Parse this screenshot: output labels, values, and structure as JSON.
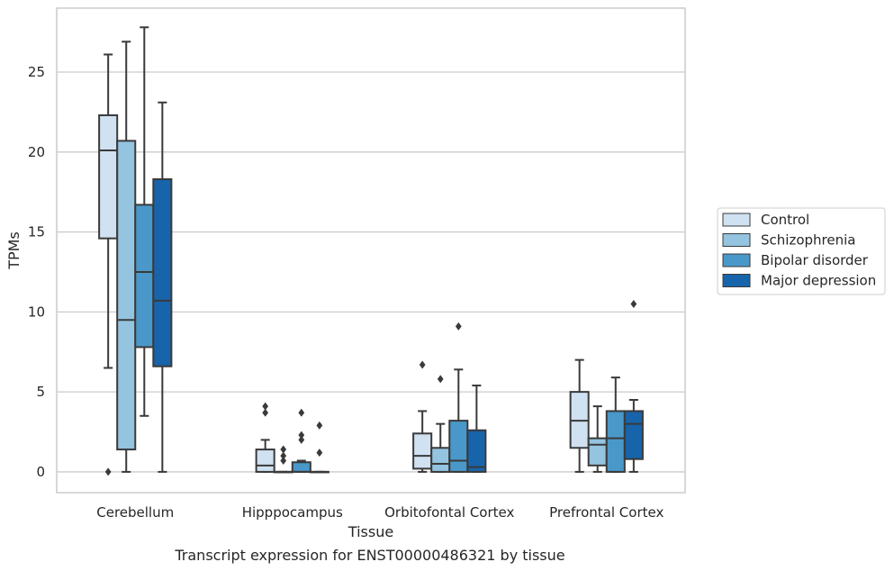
{
  "chart_data": {
    "type": "box",
    "title": "",
    "caption": "Transcript expression for ENST00000486321 by tissue",
    "xlabel": "Tissue",
    "ylabel": "TPMs",
    "ylim": [
      -1.3,
      29
    ],
    "yticks": [
      0,
      5,
      10,
      15,
      20,
      25
    ],
    "grid": "horizontal",
    "legend_position": "right",
    "categories": [
      "Cerebellum",
      "Hipppocampus",
      "Orbitofontal Cortex",
      "Prefrontal Cortex"
    ],
    "series": [
      {
        "name": "Control",
        "color": "#d0e1f2",
        "boxes": [
          {
            "whislo": 6.5,
            "q1": 14.6,
            "med": 20.1,
            "q3": 22.3,
            "whishi": 26.1,
            "fliers": [
              0
            ]
          },
          {
            "whislo": 0,
            "q1": 0,
            "med": 0.4,
            "q3": 1.4,
            "whishi": 2.0,
            "fliers": [
              3.7,
              4.1
            ]
          },
          {
            "whislo": 0,
            "q1": 0.2,
            "med": 1.0,
            "q3": 2.4,
            "whishi": 3.8,
            "fliers": [
              6.7
            ]
          },
          {
            "whislo": 0,
            "q1": 1.5,
            "med": 3.2,
            "q3": 5.0,
            "whishi": 7.0,
            "fliers": []
          }
        ]
      },
      {
        "name": "Schizophrenia",
        "color": "#94c4df",
        "boxes": [
          {
            "whislo": 0,
            "q1": 1.4,
            "med": 9.5,
            "q3": 20.7,
            "whishi": 26.9,
            "fliers": []
          },
          {
            "whislo": 0,
            "q1": 0,
            "med": 0,
            "q3": 0,
            "whishi": 0,
            "fliers": [
              0.7,
              1.0,
              1.4
            ]
          },
          {
            "whislo": 0,
            "q1": 0,
            "med": 0.5,
            "q3": 1.5,
            "whishi": 3.0,
            "fliers": [
              5.8
            ]
          },
          {
            "whislo": 0,
            "q1": 0.4,
            "med": 1.7,
            "q3": 2.1,
            "whishi": 4.1,
            "fliers": []
          }
        ]
      },
      {
        "name": "Bipolar disorder",
        "color": "#4a98c9",
        "boxes": [
          {
            "whislo": 3.5,
            "q1": 7.8,
            "med": 12.5,
            "q3": 16.7,
            "whishi": 27.8,
            "fliers": []
          },
          {
            "whislo": 0,
            "q1": 0,
            "med": 0,
            "q3": 0.6,
            "whishi": 0.7,
            "fliers": [
              2.0,
              2.3,
              3.7
            ]
          },
          {
            "whislo": 0,
            "q1": 0,
            "med": 0.7,
            "q3": 3.2,
            "whishi": 6.4,
            "fliers": [
              9.1
            ]
          },
          {
            "whislo": 0,
            "q1": 0,
            "med": 2.1,
            "q3": 3.8,
            "whishi": 5.9,
            "fliers": []
          }
        ]
      },
      {
        "name": "Major depression",
        "color": "#1764ab",
        "boxes": [
          {
            "whislo": 0,
            "q1": 6.6,
            "med": 10.7,
            "q3": 18.3,
            "whishi": 23.1,
            "fliers": []
          },
          {
            "whislo": 0,
            "q1": 0,
            "med": 0,
            "q3": 0,
            "whishi": 0,
            "fliers": [
              1.2,
              2.9
            ]
          },
          {
            "whislo": 0,
            "q1": 0,
            "med": 0.3,
            "q3": 2.6,
            "whishi": 5.4,
            "fliers": []
          },
          {
            "whislo": 0,
            "q1": 0.8,
            "med": 3.0,
            "q3": 3.8,
            "whishi": 4.5,
            "fliers": [
              10.5
            ]
          }
        ]
      }
    ]
  }
}
